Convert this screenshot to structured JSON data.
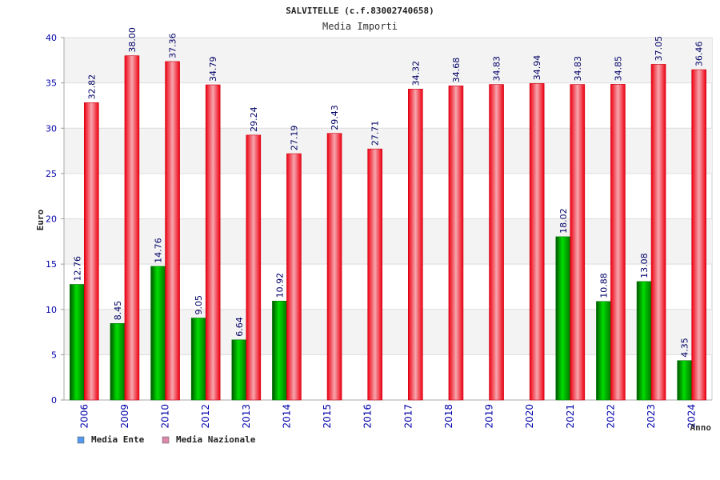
{
  "chart_data": {
    "type": "bar",
    "title": "SALVITELLE (c.f.83002740658)",
    "subtitle": "Media Importi",
    "xlabel": "Anno",
    "ylabel": "Euro",
    "ylim": [
      0,
      40
    ],
    "yticks": [
      0,
      5,
      10,
      15,
      20,
      25,
      30,
      35,
      40
    ],
    "grid": true,
    "legend_position": "bottom-left",
    "categories": [
      "2006",
      "2009",
      "2010",
      "2012",
      "2013",
      "2014",
      "2015",
      "2016",
      "2017",
      "2018",
      "2019",
      "2020",
      "2021",
      "2022",
      "2023",
      "2024"
    ],
    "series": [
      {
        "name": "Media Ente",
        "color": "#00aa00",
        "legend_color": "#5599ee",
        "values": [
          12.76,
          8.45,
          14.76,
          9.05,
          6.64,
          10.92,
          null,
          null,
          null,
          null,
          null,
          null,
          18.02,
          10.88,
          13.08,
          4.35
        ],
        "labels": [
          "12.76",
          "8.45",
          "14.76",
          "9.05",
          "6.64",
          "10.92",
          "",
          "",
          "",
          "",
          "",
          "",
          "18.02",
          "10.88",
          "13.08",
          "4.35"
        ]
      },
      {
        "name": "Media Nazionale",
        "color": "#ee1122",
        "legend_color": "#dd88aa",
        "values": [
          32.82,
          38.0,
          37.36,
          34.79,
          29.24,
          27.19,
          29.43,
          27.71,
          34.32,
          34.68,
          34.83,
          34.94,
          34.83,
          34.85,
          37.05,
          36.46
        ],
        "labels": [
          "32.82",
          "38.00",
          "37.36",
          "34.79",
          "29.24",
          "27.19",
          "29.43",
          "27.71",
          "34.32",
          "34.68",
          "34.83",
          "34.94",
          "34.83",
          "34.85",
          "37.05",
          "36.46"
        ]
      }
    ]
  }
}
